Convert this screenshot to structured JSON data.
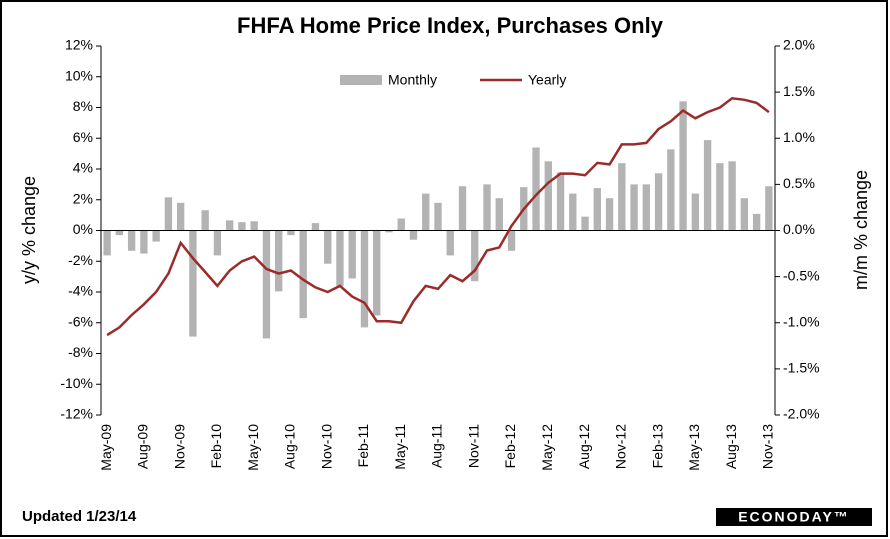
{
  "chart_data": {
    "type": "bar-line",
    "title": "FHFA Home Price Index, Purchases Only",
    "y_label": "y/y  % change",
    "y2_label": "m/m % change",
    "updated": "Updated 1/23/14",
    "logo": "ECONODAY™",
    "categories": [
      "May-09",
      null,
      null,
      "Aug-09",
      null,
      null,
      "Nov-09",
      null,
      null,
      "Feb-10",
      null,
      null,
      "May-10",
      null,
      null,
      "Aug-10",
      null,
      null,
      "Nov-10",
      null,
      null,
      "Feb-11",
      null,
      null,
      "May-11",
      null,
      null,
      "Aug-11",
      null,
      null,
      "Nov-11",
      null,
      null,
      "Feb-12",
      null,
      null,
      "May-12",
      null,
      null,
      "Aug-12",
      null,
      null,
      "Nov-12",
      null,
      null,
      "Feb-13",
      null,
      null,
      "May-13",
      null,
      null,
      "Aug-13",
      null,
      null,
      "Nov-13"
    ],
    "series": [
      {
        "name": "Monthly",
        "type": "bar",
        "axis": "y2",
        "color": "#b3b3b3",
        "values": [
          -0.27,
          -0.05,
          -0.22,
          -0.25,
          -0.12,
          0.36,
          0.3,
          -1.15,
          0.22,
          -0.27,
          0.11,
          0.09,
          0.1,
          -1.17,
          -0.66,
          -0.05,
          -0.95,
          0.08,
          -0.36,
          -0.6,
          -0.52,
          -1.05,
          -0.92,
          -0.02,
          0.13,
          -0.1,
          0.4,
          0.3,
          -0.27,
          0.48,
          -0.55,
          0.5,
          0.35,
          -0.22,
          0.47,
          0.9,
          0.75,
          0.63,
          0.4,
          0.15,
          0.46,
          0.35,
          0.73,
          0.5,
          0.5,
          0.62,
          0.88,
          1.4,
          0.4,
          0.98,
          0.73,
          0.75,
          0.35,
          0.18,
          0.48
        ]
      },
      {
        "name": "Yearly",
        "type": "line",
        "color": "#9b2b2b",
        "values": [
          -6.8,
          -6.3,
          -5.5,
          -4.8,
          -4.0,
          -2.8,
          -0.8,
          -1.8,
          -2.7,
          -3.6,
          -2.6,
          -2.0,
          -1.7,
          -2.5,
          -2.8,
          -2.6,
          -3.2,
          -3.7,
          -4.0,
          -3.6,
          -4.3,
          -4.7,
          -5.9,
          -5.9,
          -6.0,
          -4.6,
          -3.6,
          -3.8,
          -2.9,
          -3.3,
          -2.6,
          -1.3,
          -1.1,
          0.3,
          1.4,
          2.3,
          3.1,
          3.7,
          3.7,
          3.6,
          4.4,
          4.3,
          5.6,
          5.6,
          5.7,
          6.6,
          7.1,
          7.8,
          7.3,
          7.7,
          8.0,
          8.6,
          8.5,
          8.3,
          7.7
        ]
      }
    ],
    "ylim": [
      -12,
      12
    ],
    "yticks": [
      {
        "value": -12,
        "label": "-12%"
      },
      {
        "value": -10,
        "label": "-10%"
      },
      {
        "value": -8,
        "label": "-8%"
      },
      {
        "value": -6,
        "label": "-6%"
      },
      {
        "value": -4,
        "label": "-4%"
      },
      {
        "value": -2,
        "label": "-2%"
      },
      {
        "value": 0,
        "label": "0%"
      },
      {
        "value": 2,
        "label": "2%"
      },
      {
        "value": 4,
        "label": "4%"
      },
      {
        "value": 6,
        "label": "6%"
      },
      {
        "value": 8,
        "label": "8%"
      },
      {
        "value": 10,
        "label": "10%"
      },
      {
        "value": 12,
        "label": "12%"
      }
    ],
    "y2lim": [
      -2,
      2
    ],
    "y2ticks": [
      {
        "value": -2,
        "label": "-2.0%"
      },
      {
        "value": -1.5,
        "label": "-1.5%"
      },
      {
        "value": -1,
        "label": "-1.0%"
      },
      {
        "value": -0.5,
        "label": "-0.5%"
      },
      {
        "value": 0,
        "label": "0.0%"
      },
      {
        "value": 0.5,
        "label": "0.5%"
      },
      {
        "value": 1,
        "label": "1.0%"
      },
      {
        "value": 1.5,
        "label": "1.5%"
      },
      {
        "value": 2,
        "label": "2.0%"
      }
    ],
    "legend": "top"
  }
}
